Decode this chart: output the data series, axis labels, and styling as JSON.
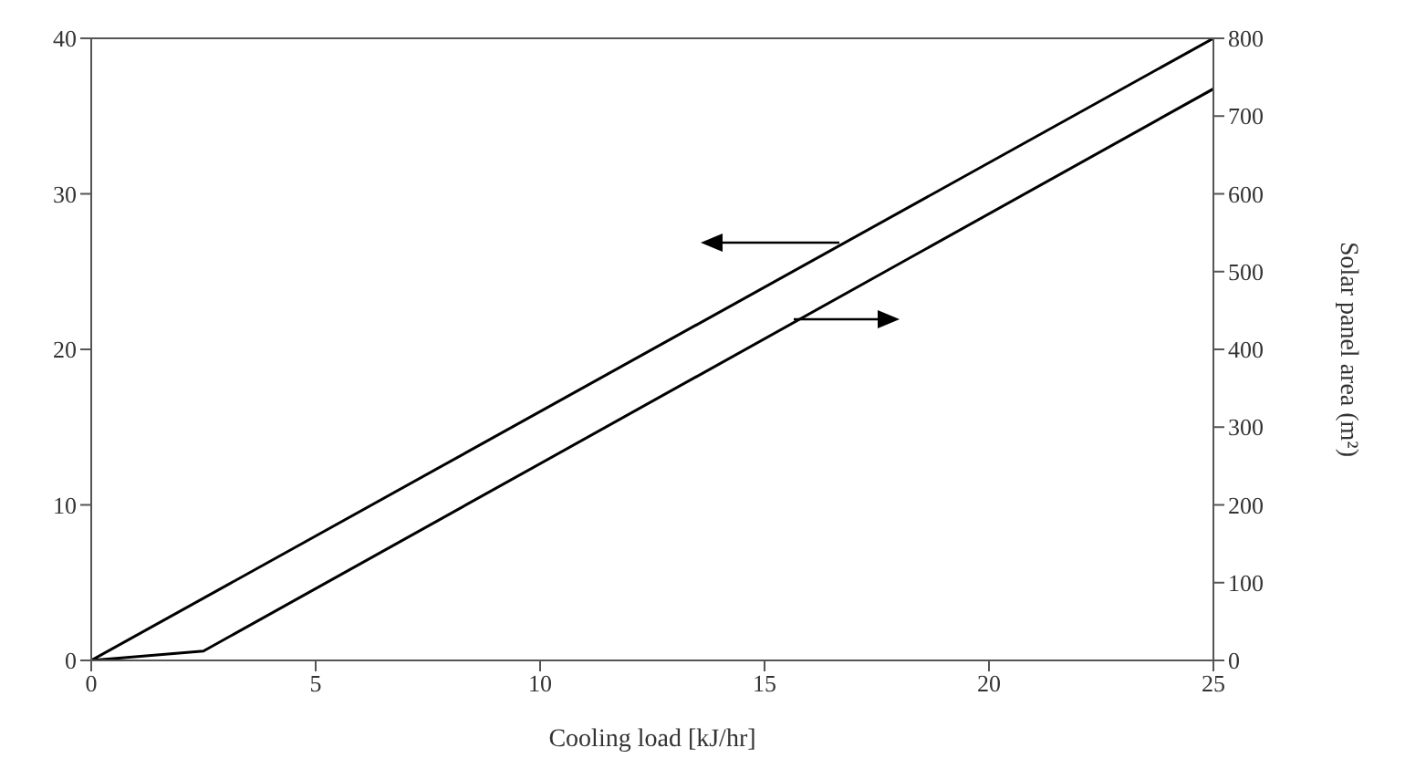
{
  "chart_data": {
    "type": "line",
    "xlabel": "Cooling load [kJ/hr]",
    "y2label": "Solar panel area (m²)",
    "xlim": [
      0,
      25
    ],
    "xticks": [
      0,
      5,
      10,
      15,
      20,
      25
    ],
    "ylim": [
      0,
      40
    ],
    "yticks": [
      0,
      10,
      20,
      30,
      40
    ],
    "y2lim": [
      0,
      800
    ],
    "y2ticks": [
      0,
      100,
      200,
      300,
      400,
      500,
      600,
      700,
      800
    ],
    "series": [
      {
        "color": "#000000",
        "x": [
          0,
          25
        ],
        "values": [
          0,
          40
        ]
      },
      {
        "color": "#000000",
        "axis": "y2",
        "x": [
          0,
          2.5,
          25
        ],
        "values": [
          0,
          12,
          735
        ]
      }
    ],
    "marker": "none",
    "line_style": "solid"
  }
}
